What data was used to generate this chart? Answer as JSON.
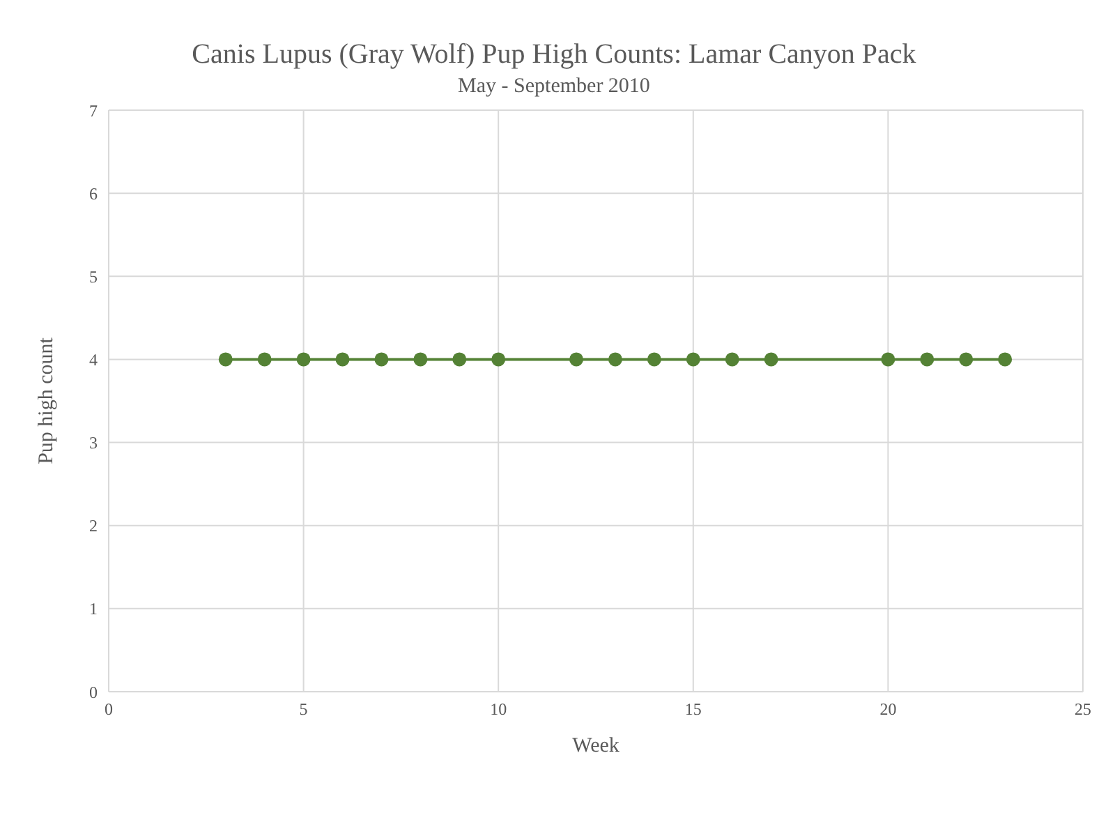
{
  "chart_data": {
    "type": "line",
    "title": "Canis Lupus (Gray Wolf) Pup High Counts: Lamar Canyon Pack",
    "subtitle": "May - September 2010",
    "xlabel": "Week",
    "ylabel": "Pup high count",
    "x": [
      3,
      4,
      5,
      6,
      7,
      8,
      9,
      10,
      12,
      13,
      14,
      15,
      16,
      17,
      20,
      21,
      22,
      23
    ],
    "series": [
      {
        "color": "#548235",
        "values": [
          4,
          4,
          4,
          4,
          4,
          4,
          4,
          4,
          4,
          4,
          4,
          4,
          4,
          4,
          4,
          4,
          4,
          4
        ]
      }
    ],
    "xlim": [
      0,
      25
    ],
    "xticks": [
      0,
      5,
      10,
      15,
      20,
      25
    ],
    "ylim": [
      0,
      7
    ],
    "yticks": [
      0,
      1,
      2,
      3,
      4,
      5,
      6,
      7
    ],
    "grid": true,
    "marker": "circle",
    "line_style": "solid"
  }
}
